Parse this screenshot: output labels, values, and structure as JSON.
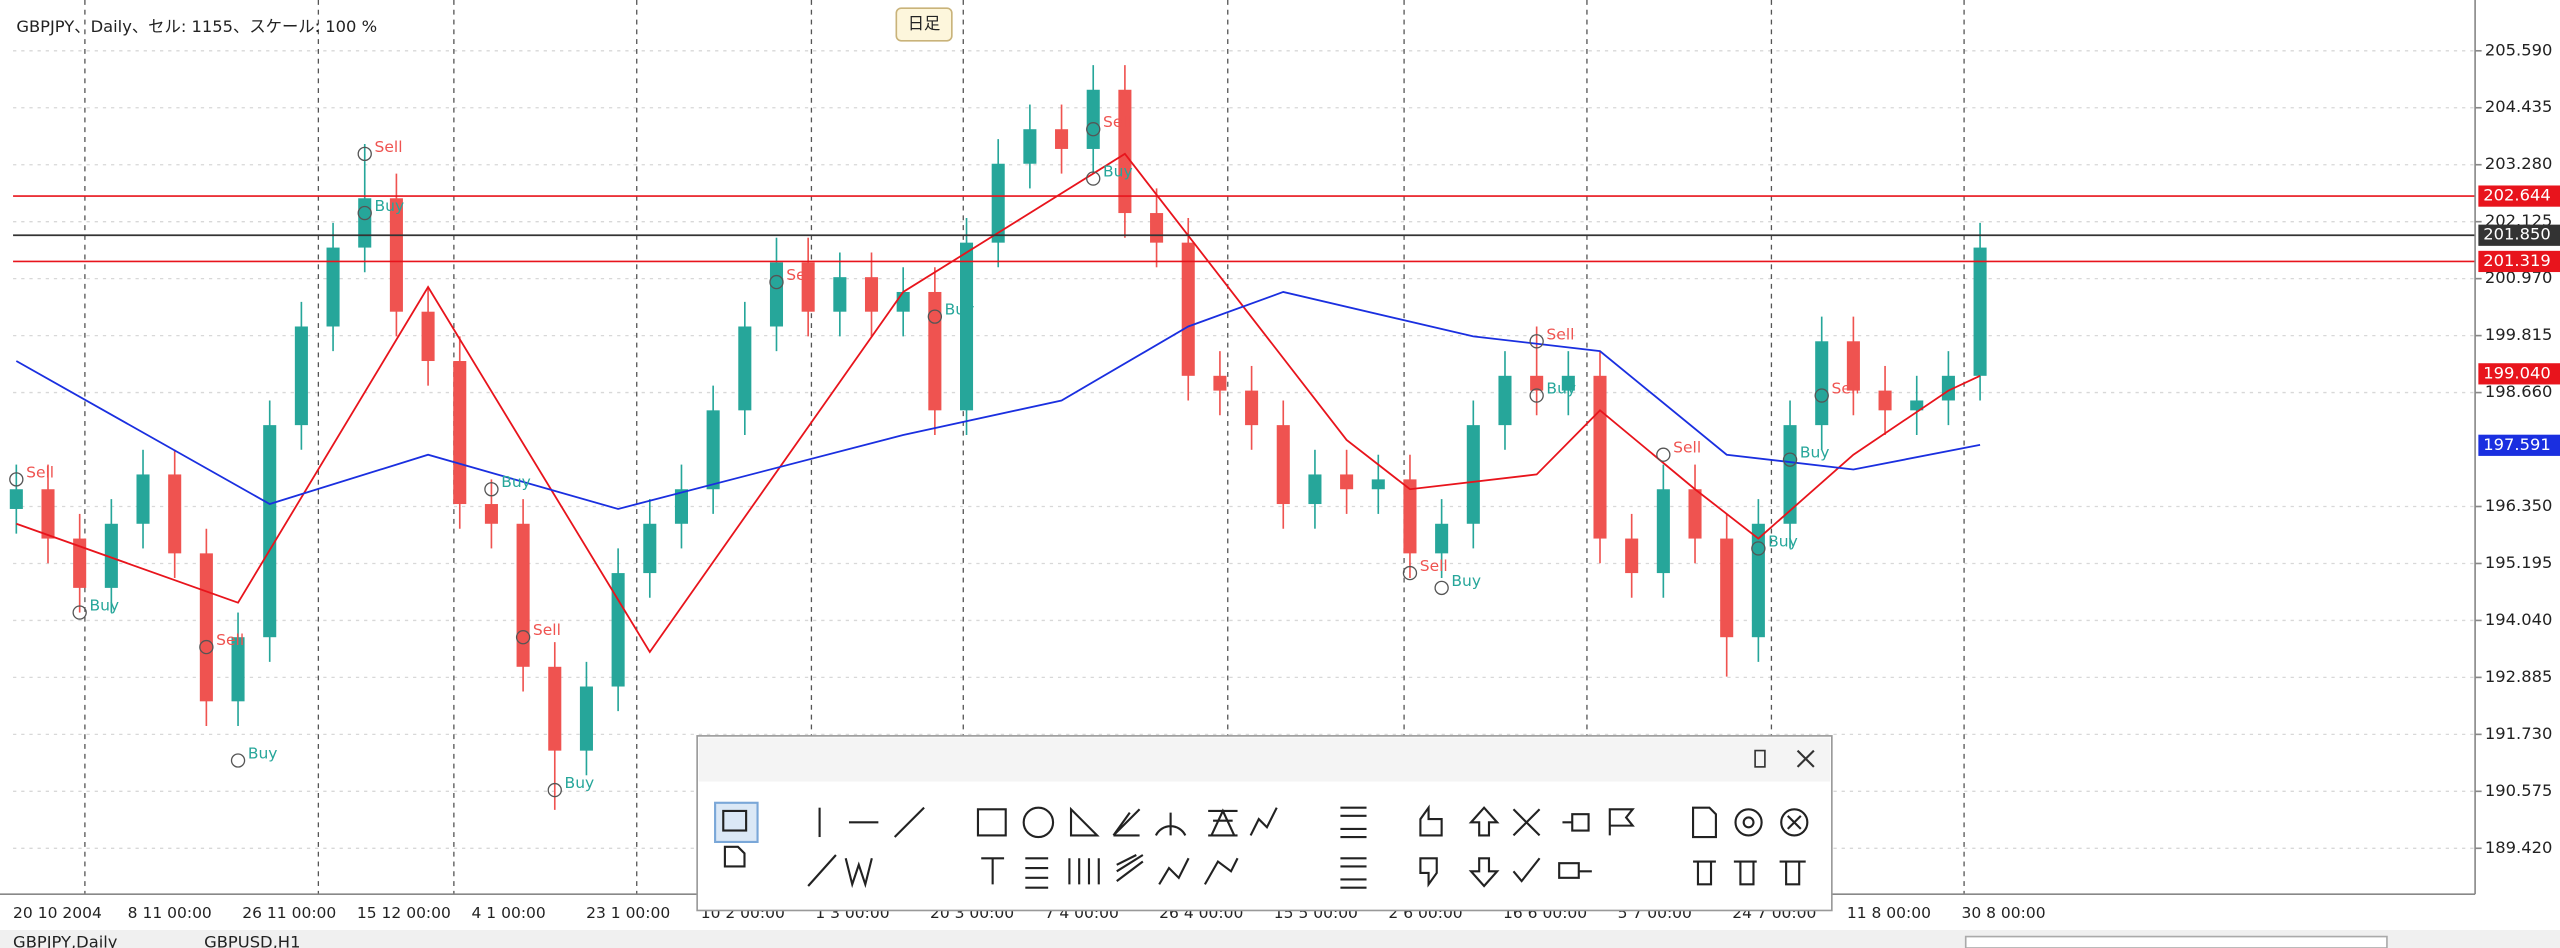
{
  "header": {
    "title": "GBPJPY、Daily、セル: 1155、スケール: 100 %",
    "tooltip": "日足"
  },
  "chart_data": {
    "type": "candlestick",
    "candles": {
      "open": [
        196.3,
        196.7,
        195.7,
        194.7,
        196.0,
        197.0,
        195.4,
        192.4,
        193.7,
        198.0,
        200.0,
        201.6,
        202.6,
        200.3,
        199.3,
        196.4,
        196.0,
        193.1,
        191.4,
        192.7,
        195.0,
        196.0,
        196.7,
        198.3,
        200.0,
        201.3,
        200.3,
        201.0,
        200.3,
        200.7,
        198.3,
        201.7,
        203.3,
        204.0,
        203.6,
        204.8,
        202.3,
        201.7,
        199.0,
        198.7,
        198.0,
        196.4,
        197.0,
        196.7,
        196.9,
        195.4,
        196.0,
        198.0,
        199.0,
        198.7,
        199.0,
        195.7,
        195.0,
        196.7,
        195.7,
        193.7,
        196.0,
        198.0,
        199.7,
        198.7,
        198.3,
        198.5,
        199.0
      ],
      "high": [
        197.2,
        197.2,
        196.2,
        196.5,
        197.5,
        197.5,
        195.9,
        194.2,
        198.5,
        200.5,
        202.1,
        203.7,
        203.1,
        200.8,
        199.8,
        196.9,
        196.5,
        193.6,
        193.2,
        195.5,
        196.5,
        197.2,
        198.8,
        200.5,
        201.8,
        201.8,
        201.5,
        201.5,
        201.2,
        201.2,
        202.2,
        203.8,
        204.5,
        204.5,
        205.3,
        205.3,
        202.8,
        202.2,
        199.5,
        199.2,
        198.5,
        197.5,
        197.5,
        197.4,
        197.4,
        196.5,
        198.5,
        199.5,
        200.0,
        199.5,
        199.5,
        196.2,
        197.2,
        197.2,
        196.2,
        196.5,
        198.5,
        200.2,
        200.2,
        199.2,
        199.0,
        199.5,
        202.1
      ],
      "low": [
        195.8,
        195.2,
        194.2,
        194.2,
        195.5,
        194.9,
        191.9,
        191.9,
        193.2,
        197.5,
        199.5,
        201.1,
        199.8,
        198.8,
        195.9,
        195.5,
        192.6,
        190.2,
        190.9,
        192.2,
        194.5,
        195.5,
        196.2,
        197.8,
        199.5,
        199.8,
        199.8,
        199.8,
        199.8,
        197.8,
        197.8,
        201.2,
        202.8,
        203.1,
        203.1,
        201.8,
        201.2,
        198.5,
        198.2,
        197.5,
        195.9,
        195.9,
        196.2,
        196.2,
        194.9,
        194.9,
        195.5,
        197.5,
        198.2,
        198.2,
        195.2,
        194.5,
        194.5,
        195.2,
        192.9,
        193.2,
        195.5,
        197.5,
        198.2,
        197.8,
        197.8,
        198.0,
        198.5
      ],
      "close": [
        196.7,
        195.7,
        194.7,
        196.0,
        197.0,
        195.4,
        192.4,
        193.7,
        198.0,
        200.0,
        201.6,
        202.6,
        200.3,
        199.3,
        196.4,
        196.0,
        193.1,
        191.4,
        192.7,
        195.0,
        196.0,
        196.7,
        198.3,
        200.0,
        201.3,
        200.3,
        201.0,
        200.3,
        200.7,
        198.3,
        201.7,
        203.3,
        204.0,
        203.6,
        204.8,
        202.3,
        201.7,
        199.0,
        198.7,
        198.0,
        196.4,
        197.0,
        196.7,
        196.9,
        195.4,
        196.0,
        198.0,
        199.0,
        198.7,
        199.0,
        195.7,
        195.0,
        196.7,
        195.7,
        193.7,
        196.0,
        198.0,
        199.7,
        198.7,
        198.3,
        198.5,
        199.0,
        201.6
      ],
      "up_color": "#26a69a",
      "down_color": "#ef5350"
    },
    "series": [
      {
        "color": "#e8141c",
        "x": [
          0,
          7,
          13,
          20,
          28,
          35,
          42,
          44,
          48,
          50,
          53,
          55,
          58,
          61,
          62
        ],
        "values": [
          196.0,
          194.4,
          200.8,
          193.4,
          200.7,
          203.5,
          197.7,
          196.7,
          197.0,
          198.3,
          196.7,
          195.7,
          197.4,
          198.7,
          199.0
        ]
      },
      {
        "color": "#1a2fe0",
        "x": [
          0,
          8,
          13,
          19,
          28,
          33,
          37,
          40,
          46,
          50,
          54,
          58,
          62
        ],
        "values": [
          199.3,
          196.4,
          197.4,
          196.3,
          197.8,
          198.5,
          200.0,
          200.7,
          199.8,
          199.5,
          197.4,
          197.1,
          197.6
        ]
      }
    ],
    "signals": [
      {
        "text": "Sell",
        "index": 0,
        "price": 196.9
      },
      {
        "text": "Buy",
        "index": 2,
        "price": 194.2
      },
      {
        "text": "Sell",
        "index": 6,
        "price": 193.5
      },
      {
        "text": "Buy",
        "index": 7,
        "price": 191.2
      },
      {
        "text": "Sell",
        "index": 11,
        "price": 203.5
      },
      {
        "text": "Buy",
        "index": 11,
        "price": 202.3
      },
      {
        "text": "Buy",
        "index": 15,
        "price": 196.7
      },
      {
        "text": "Sell",
        "index": 16,
        "price": 193.7
      },
      {
        "text": "Buy",
        "index": 17,
        "price": 190.6
      },
      {
        "text": "Sell",
        "index": 24,
        "price": 200.9
      },
      {
        "text": "Buy",
        "index": 29,
        "price": 200.2
      },
      {
        "text": "Sell",
        "index": 34,
        "price": 204.0
      },
      {
        "text": "Buy",
        "index": 34,
        "price": 203.0
      },
      {
        "text": "Sell",
        "index": 44,
        "price": 195.0
      },
      {
        "text": "Buy",
        "index": 45,
        "price": 194.7
      },
      {
        "text": "Sell",
        "index": 48,
        "price": 199.7
      },
      {
        "text": "Buy",
        "index": 48,
        "price": 198.6
      },
      {
        "text": "Sell",
        "index": 52,
        "price": 197.4
      },
      {
        "text": "Buy",
        "index": 56,
        "price": 197.3
      },
      {
        "text": "Buy",
        "index": 55,
        "price": 195.5
      },
      {
        "text": "Sell",
        "index": 57,
        "price": 198.6
      }
    ],
    "sell_color": "#ef5350",
    "buy_color": "#26a69a",
    "price_tags": [
      {
        "value": 202.644,
        "color": "#e8141c",
        "line": true
      },
      {
        "value": 201.85,
        "label": "201.850",
        "color": "#333333",
        "line": true
      },
      {
        "value": 201.319,
        "color": "#e8141c",
        "line": true
      },
      {
        "value": 199.04,
        "label": "199.040",
        "color": "#e8141c",
        "line": false
      },
      {
        "value": 197.591,
        "color": "#1a2fe0",
        "line": false
      }
    ],
    "ylim": [
      188.49,
      206.62
    ],
    "yticks": [
      {
        "value": 205.59,
        "label": "205.590"
      },
      204.435,
      {
        "value": 203.28,
        "label": "203.280"
      },
      202.125,
      {
        "value": 200.97,
        "label": "200.970"
      },
      199.815,
      {
        "value": 198.66,
        "label": "198.660"
      },
      {
        "value": 196.35,
        "label": "196.350"
      },
      195.195,
      {
        "value": 194.04,
        "label": "194.040"
      },
      192.885,
      {
        "value": 191.73,
        "label": "191.730"
      },
      190.575,
      {
        "value": 189.42,
        "label": "189.420"
      }
    ],
    "grid": true,
    "date_labels": [
      "20 10 2004",
      "8 11 00:00",
      "26 11 00:00",
      "15 12 00:00",
      "4 1 00:00",
      "23 1 00:00",
      "10 2 00:00",
      "1 3 00:00",
      "20 3 00:00",
      "7 4 00:00",
      "26 4 00:00",
      "15 5 00:00",
      "2 6 00:00",
      "16 6 00:00",
      "5 7 00:00",
      "24 7 00:00",
      "11 8 00:00",
      "30 8 00:00"
    ]
  },
  "tabs": [
    "GBPJPY,Daily",
    "GBPUSD,H1"
  ]
}
